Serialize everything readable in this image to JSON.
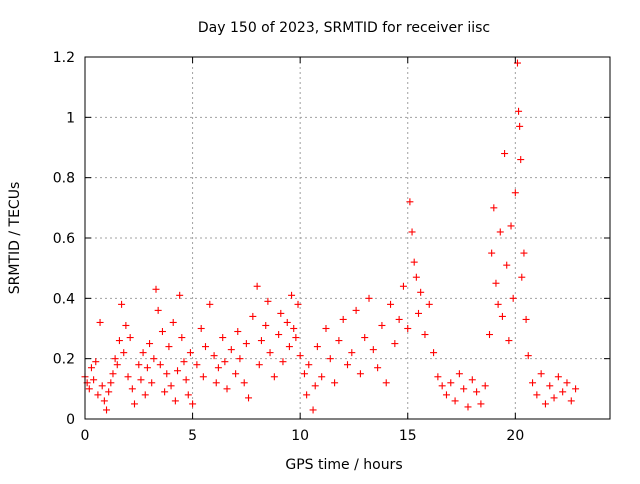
{
  "chart_data": {
    "type": "scatter",
    "title": "Day 150 of 2023, SRMTID for receiver iisc",
    "xlabel": "GPS time / hours",
    "ylabel": "SRMTID / TECUs",
    "xlim": [
      0,
      24.4
    ],
    "ylim": [
      0,
      1.2
    ],
    "x_ticks": [
      0,
      5,
      10,
      15,
      20
    ],
    "x_tick_labels": [
      "0",
      "5",
      "10",
      "15",
      "20"
    ],
    "y_ticks": [
      0,
      0.2,
      0.4,
      0.6,
      0.8,
      1,
      1.2
    ],
    "y_tick_labels": [
      "0",
      "0.2",
      "0.4",
      "0.6",
      "0.8",
      "1",
      "1.2"
    ],
    "grid": true,
    "marker": "plus",
    "series": [
      {
        "name": "SRMTID",
        "color": "#ff0000",
        "points": [
          [
            0.0,
            0.14
          ],
          [
            0.1,
            0.12
          ],
          [
            0.2,
            0.1
          ],
          [
            0.3,
            0.17
          ],
          [
            0.4,
            0.13
          ],
          [
            0.5,
            0.19
          ],
          [
            0.6,
            0.08
          ],
          [
            0.7,
            0.32
          ],
          [
            0.8,
            0.11
          ],
          [
            0.9,
            0.06
          ],
          [
            1.0,
            0.03
          ],
          [
            1.1,
            0.09
          ],
          [
            1.2,
            0.12
          ],
          [
            1.3,
            0.15
          ],
          [
            1.4,
            0.2
          ],
          [
            1.5,
            0.18
          ],
          [
            1.6,
            0.26
          ],
          [
            1.7,
            0.38
          ],
          [
            1.8,
            0.22
          ],
          [
            1.9,
            0.31
          ],
          [
            2.0,
            0.14
          ],
          [
            2.1,
            0.27
          ],
          [
            2.2,
            0.1
          ],
          [
            2.3,
            0.05
          ],
          [
            2.5,
            0.18
          ],
          [
            2.6,
            0.13
          ],
          [
            2.7,
            0.22
          ],
          [
            2.8,
            0.08
          ],
          [
            2.9,
            0.17
          ],
          [
            3.0,
            0.25
          ],
          [
            3.1,
            0.12
          ],
          [
            3.2,
            0.2
          ],
          [
            3.3,
            0.43
          ],
          [
            3.4,
            0.36
          ],
          [
            3.5,
            0.18
          ],
          [
            3.6,
            0.29
          ],
          [
            3.7,
            0.09
          ],
          [
            3.8,
            0.15
          ],
          [
            3.9,
            0.24
          ],
          [
            4.0,
            0.11
          ],
          [
            4.1,
            0.32
          ],
          [
            4.2,
            0.06
          ],
          [
            4.3,
            0.16
          ],
          [
            4.4,
            0.41
          ],
          [
            4.5,
            0.27
          ],
          [
            4.6,
            0.19
          ],
          [
            4.7,
            0.13
          ],
          [
            4.8,
            0.08
          ],
          [
            4.9,
            0.22
          ],
          [
            5.0,
            0.05
          ],
          [
            5.2,
            0.18
          ],
          [
            5.4,
            0.3
          ],
          [
            5.5,
            0.14
          ],
          [
            5.6,
            0.24
          ],
          [
            5.8,
            0.38
          ],
          [
            6.0,
            0.21
          ],
          [
            6.1,
            0.12
          ],
          [
            6.2,
            0.17
          ],
          [
            6.4,
            0.27
          ],
          [
            6.5,
            0.19
          ],
          [
            6.6,
            0.1
          ],
          [
            6.8,
            0.23
          ],
          [
            7.0,
            0.15
          ],
          [
            7.1,
            0.29
          ],
          [
            7.2,
            0.2
          ],
          [
            7.4,
            0.12
          ],
          [
            7.5,
            0.25
          ],
          [
            7.6,
            0.07
          ],
          [
            7.8,
            0.34
          ],
          [
            8.0,
            0.44
          ],
          [
            8.1,
            0.18
          ],
          [
            8.2,
            0.26
          ],
          [
            8.4,
            0.31
          ],
          [
            8.5,
            0.39
          ],
          [
            8.6,
            0.22
          ],
          [
            8.8,
            0.14
          ],
          [
            9.0,
            0.28
          ],
          [
            9.1,
            0.35
          ],
          [
            9.2,
            0.19
          ],
          [
            9.4,
            0.32
          ],
          [
            9.5,
            0.24
          ],
          [
            9.6,
            0.41
          ],
          [
            9.7,
            0.3
          ],
          [
            9.8,
            0.27
          ],
          [
            9.9,
            0.38
          ],
          [
            10.0,
            0.21
          ],
          [
            10.2,
            0.15
          ],
          [
            10.3,
            0.08
          ],
          [
            10.4,
            0.18
          ],
          [
            10.6,
            0.03
          ],
          [
            10.7,
            0.11
          ],
          [
            10.8,
            0.24
          ],
          [
            11.0,
            0.14
          ],
          [
            11.2,
            0.3
          ],
          [
            11.4,
            0.2
          ],
          [
            11.6,
            0.12
          ],
          [
            11.8,
            0.26
          ],
          [
            12.0,
            0.33
          ],
          [
            12.2,
            0.18
          ],
          [
            12.4,
            0.22
          ],
          [
            12.6,
            0.36
          ],
          [
            12.8,
            0.15
          ],
          [
            13.0,
            0.27
          ],
          [
            13.2,
            0.4
          ],
          [
            13.4,
            0.23
          ],
          [
            13.6,
            0.17
          ],
          [
            13.8,
            0.31
          ],
          [
            14.0,
            0.12
          ],
          [
            14.2,
            0.38
          ],
          [
            14.4,
            0.25
          ],
          [
            14.6,
            0.33
          ],
          [
            14.8,
            0.44
          ],
          [
            15.0,
            0.3
          ],
          [
            15.1,
            0.72
          ],
          [
            15.2,
            0.62
          ],
          [
            15.3,
            0.52
          ],
          [
            15.4,
            0.47
          ],
          [
            15.5,
            0.35
          ],
          [
            15.6,
            0.42
          ],
          [
            15.8,
            0.28
          ],
          [
            16.0,
            0.38
          ],
          [
            16.2,
            0.22
          ],
          [
            16.4,
            0.14
          ],
          [
            16.6,
            0.11
          ],
          [
            16.8,
            0.08
          ],
          [
            17.0,
            0.12
          ],
          [
            17.2,
            0.06
          ],
          [
            17.4,
            0.15
          ],
          [
            17.6,
            0.1
          ],
          [
            17.8,
            0.04
          ],
          [
            18.0,
            0.13
          ],
          [
            18.2,
            0.09
          ],
          [
            18.4,
            0.05
          ],
          [
            18.6,
            0.11
          ],
          [
            18.8,
            0.28
          ],
          [
            18.9,
            0.55
          ],
          [
            19.0,
            0.7
          ],
          [
            19.1,
            0.45
          ],
          [
            19.2,
            0.38
          ],
          [
            19.3,
            0.62
          ],
          [
            19.4,
            0.34
          ],
          [
            19.5,
            0.88
          ],
          [
            19.6,
            0.51
          ],
          [
            19.7,
            0.26
          ],
          [
            19.8,
            0.64
          ],
          [
            19.9,
            0.4
          ],
          [
            20.0,
            0.75
          ],
          [
            20.1,
            1.18
          ],
          [
            20.15,
            1.02
          ],
          [
            20.2,
            0.97
          ],
          [
            20.25,
            0.86
          ],
          [
            20.3,
            0.47
          ],
          [
            20.4,
            0.55
          ],
          [
            20.5,
            0.33
          ],
          [
            20.6,
            0.21
          ],
          [
            20.8,
            0.12
          ],
          [
            21.0,
            0.08
          ],
          [
            21.2,
            0.15
          ],
          [
            21.4,
            0.05
          ],
          [
            21.6,
            0.11
          ],
          [
            21.8,
            0.07
          ],
          [
            22.0,
            0.14
          ],
          [
            22.2,
            0.09
          ],
          [
            22.4,
            0.12
          ],
          [
            22.6,
            0.06
          ],
          [
            22.8,
            0.1
          ]
        ]
      }
    ]
  }
}
